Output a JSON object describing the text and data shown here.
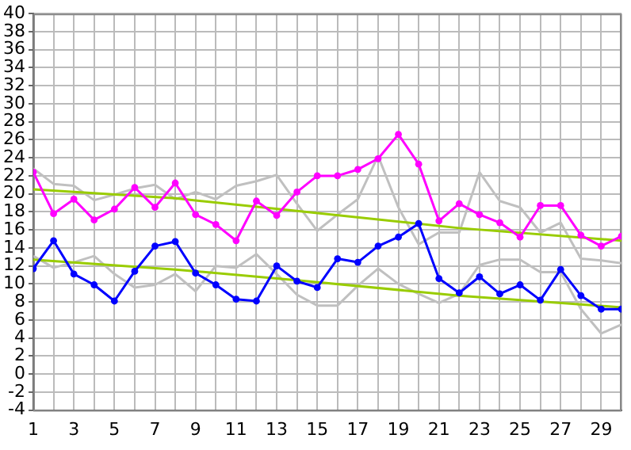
{
  "chart_data": {
    "type": "line",
    "xlim": [
      1,
      30
    ],
    "xticks": [
      1,
      {
        "value": 2,
        "label": null
      },
      3,
      {
        "value": 4,
        "label": null
      },
      5,
      {
        "value": 6,
        "label": null
      },
      7,
      {
        "value": 8,
        "label": null
      },
      9,
      {
        "value": 10,
        "label": null
      },
      11,
      {
        "value": 12,
        "label": null
      },
      13,
      {
        "value": 14,
        "label": null
      },
      15,
      {
        "value": 16,
        "label": null
      },
      17,
      {
        "value": 18,
        "label": null
      },
      19,
      {
        "value": 20,
        "label": null
      },
      21,
      {
        "value": 22,
        "label": null
      },
      23,
      {
        "value": 24,
        "label": null
      },
      25,
      {
        "value": 26,
        "label": null
      },
      27,
      {
        "value": 28,
        "label": null
      },
      29,
      {
        "value": 30,
        "label": null
      }
    ],
    "ylim": [
      -4,
      40
    ],
    "yticks": [
      -4,
      -2,
      0,
      2,
      4,
      6,
      8,
      10,
      12,
      14,
      16,
      18,
      20,
      22,
      24,
      26,
      28,
      30,
      32,
      34,
      36,
      38,
      40
    ],
    "grid": true,
    "legend": false,
    "x": [
      1,
      2,
      3,
      4,
      5,
      6,
      7,
      8,
      9,
      10,
      11,
      12,
      13,
      14,
      15,
      16,
      17,
      18,
      19,
      20,
      21,
      22,
      23,
      24,
      25,
      26,
      27,
      28,
      29,
      30
    ],
    "series": [
      {
        "color": "#c0c0c0",
        "marker": "none",
        "values": [
          22.8,
          21.1,
          20.9,
          19.3,
          19.9,
          20.6,
          21,
          19.4,
          20.2,
          19.4,
          20.9,
          21.4,
          22.1,
          18.9,
          15.9,
          17.7,
          19.4,
          24.2,
          18.5,
          14.4,
          15.7,
          15.7,
          22.4,
          19.2,
          18.5,
          15.7,
          16.8,
          12.8,
          12.6,
          12.3
        ]
      },
      {
        "color": "#c0c0c0",
        "marker": "none",
        "values": [
          13.1,
          11.8,
          12.4,
          13.1,
          11.1,
          9.6,
          9.9,
          11.1,
          9.2,
          12,
          11.8,
          13.3,
          11.1,
          8.8,
          7.6,
          7.6,
          9.8,
          11.7,
          10,
          8.9,
          7.9,
          8.9,
          12.1,
          12.7,
          12.7,
          11.3,
          11.3,
          7.2,
          4.5,
          5.5
        ]
      },
      {
        "color": "#99cc00",
        "marker": "none",
        "x": [
          1,
          8,
          14,
          22,
          30
        ],
        "values": [
          20.5,
          19.5,
          18.1,
          16.2,
          14.8
        ]
      },
      {
        "color": "#99cc00",
        "marker": "none",
        "x": [
          1,
          8,
          14,
          22,
          30
        ],
        "values": [
          12.7,
          11.6,
          10.4,
          8.7,
          7.4
        ]
      },
      {
        "color": "#ff00ff",
        "marker": "circle",
        "values": [
          22.4,
          17.8,
          19.4,
          17.1,
          18.3,
          20.7,
          18.5,
          21.2,
          17.7,
          16.6,
          14.8,
          19.2,
          17.6,
          20.2,
          22,
          22,
          22.7,
          23.9,
          26.6,
          23.3,
          17,
          18.9,
          17.7,
          16.8,
          15.2,
          18.7,
          18.7,
          15.4,
          14.2,
          15.3
        ]
      },
      {
        "color": "#0000ff",
        "marker": "circle",
        "values": [
          11.7,
          14.8,
          11.1,
          9.9,
          8.1,
          11.4,
          14.2,
          14.7,
          11.2,
          9.9,
          8.3,
          8.1,
          12,
          10.3,
          9.6,
          12.8,
          12.4,
          14.2,
          15.2,
          16.7,
          10.6,
          9,
          10.8,
          8.9,
          9.9,
          8.2,
          11.6,
          8.7,
          7.2,
          7.2
        ]
      }
    ]
  }
}
